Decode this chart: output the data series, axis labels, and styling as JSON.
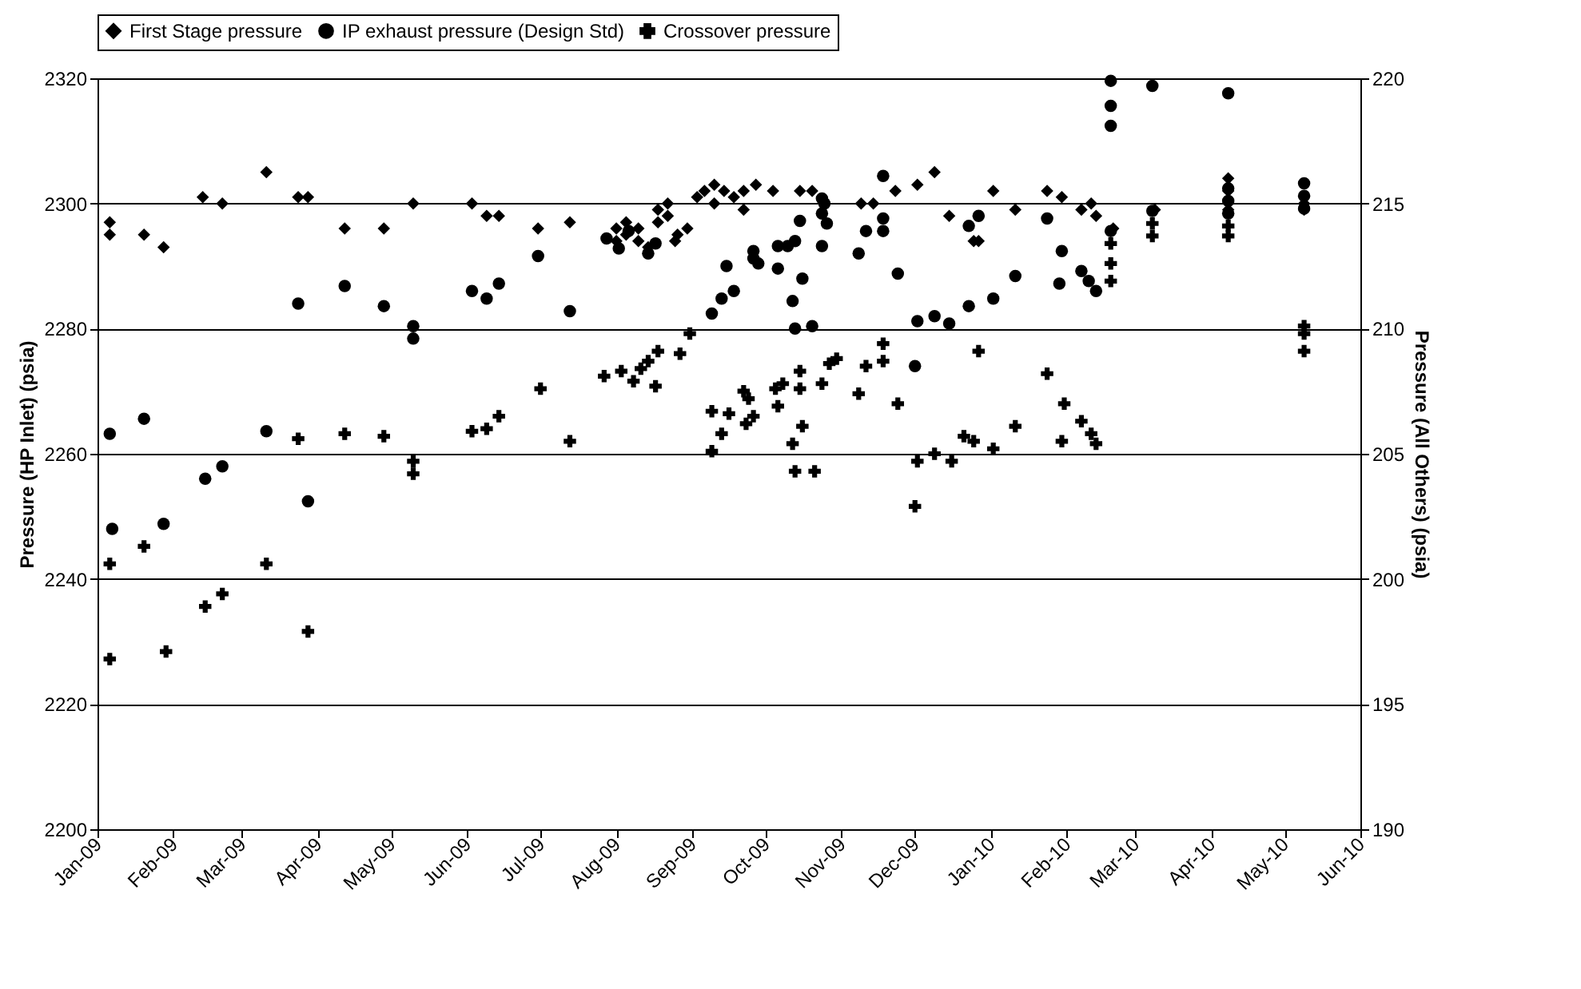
{
  "chart_data": {
    "type": "scatter",
    "ylabel": "Pressure (HP Inlet) (psia)",
    "y2label": "Pressure (All Others) (psia)",
    "xlim": [
      "2009-01-01",
      "2010-06-01"
    ],
    "xticks": [
      {
        "value": "2009-01-01",
        "label": "Jan-09"
      },
      {
        "value": "2009-02-01",
        "label": "Feb-09"
      },
      {
        "value": "2009-03-01",
        "label": "Mar-09"
      },
      {
        "value": "2009-04-01",
        "label": "Apr-09"
      },
      {
        "value": "2009-05-01",
        "label": "May-09"
      },
      {
        "value": "2009-06-01",
        "label": "Jun-09"
      },
      {
        "value": "2009-07-01",
        "label": "Jul-09"
      },
      {
        "value": "2009-08-01",
        "label": "Aug-09"
      },
      {
        "value": "2009-09-01",
        "label": "Sep-09"
      },
      {
        "value": "2009-10-01",
        "label": "Oct-09"
      },
      {
        "value": "2009-11-01",
        "label": "Nov-09"
      },
      {
        "value": "2009-12-01",
        "label": "Dec-09"
      },
      {
        "value": "2010-01-01",
        "label": "Jan-10"
      },
      {
        "value": "2010-02-01",
        "label": "Feb-10"
      },
      {
        "value": "2010-03-01",
        "label": "Mar-10"
      },
      {
        "value": "2010-04-01",
        "label": "Apr-10"
      },
      {
        "value": "2010-05-01",
        "label": "May-10"
      },
      {
        "value": "2010-06-01",
        "label": "Jun-10"
      }
    ],
    "ylim": [
      2200,
      2320
    ],
    "yticks": [
      2200,
      2220,
      2240,
      2260,
      2280,
      2300,
      2320
    ],
    "y2lim": [
      190,
      220
    ],
    "y2ticks": [
      190,
      195,
      200,
      205,
      210,
      215,
      220
    ],
    "grid": "y",
    "legend": "top",
    "series": [
      {
        "name": "First Stage pressure",
        "color": "#000000",
        "marker": "diamond",
        "x": [
          "2009-01-06",
          "2009-01-06",
          "2009-01-20",
          "2009-01-28",
          "2009-02-13",
          "2009-02-21",
          "2009-03-11",
          "2009-03-24",
          "2009-03-28",
          "2009-04-12",
          "2009-04-28",
          "2009-05-10",
          "2009-06-03",
          "2009-06-09",
          "2009-06-14",
          "2009-06-30",
          "2009-07-13",
          "2009-08-01",
          "2009-08-01",
          "2009-08-05",
          "2009-08-05",
          "2009-08-10",
          "2009-08-10",
          "2009-08-14",
          "2009-08-18",
          "2009-08-18",
          "2009-08-22",
          "2009-08-22",
          "2009-08-25",
          "2009-08-26",
          "2009-08-30",
          "2009-09-03",
          "2009-09-06",
          "2009-09-10",
          "2009-09-10",
          "2009-09-14",
          "2009-09-18",
          "2009-09-22",
          "2009-09-22",
          "2009-09-27",
          "2009-10-04",
          "2009-10-15",
          "2009-10-20",
          "2009-11-09",
          "2009-11-14",
          "2009-11-23",
          "2009-12-02",
          "2009-12-09",
          "2009-12-15",
          "2009-12-25",
          "2009-12-27",
          "2010-01-02",
          "2010-01-11",
          "2010-01-24",
          "2010-01-30",
          "2010-02-07",
          "2010-02-11",
          "2010-02-13",
          "2010-02-20",
          "2010-03-09",
          "2010-04-08",
          "2010-04-08",
          "2010-04-08",
          "2010-05-09",
          "2010-05-09"
        ],
        "values": [
          2297,
          2295,
          2295,
          2293,
          2301,
          2300,
          2305,
          2301,
          2301,
          2296,
          2296,
          2300,
          2300,
          2298,
          2298,
          2296,
          2297,
          2296,
          2294,
          2295,
          2297,
          2294,
          2296,
          2293,
          2297,
          2299,
          2300,
          2298,
          2294,
          2295,
          2296,
          2301,
          2302,
          2303,
          2300,
          2302,
          2301,
          2302,
          2299,
          2303,
          2302,
          2302,
          2302,
          2300,
          2300,
          2302,
          2303,
          2305,
          2298,
          2294,
          2294,
          2302,
          2299,
          2302,
          2301,
          2299,
          2300,
          2298,
          2296,
          2299,
          2304,
          2302,
          2299,
          2300,
          2299
        ]
      },
      {
        "name": "IP exhaust pressure (Design Std)",
        "color": "#000000",
        "marker": "circle",
        "axis": "y2",
        "x": [
          "2009-01-06",
          "2009-01-07",
          "2009-01-20",
          "2009-01-28",
          "2009-02-14",
          "2009-02-21",
          "2009-03-11",
          "2009-03-24",
          "2009-03-28",
          "2009-04-12",
          "2009-04-28",
          "2009-05-10",
          "2009-05-10",
          "2009-06-03",
          "2009-06-09",
          "2009-06-14",
          "2009-06-30",
          "2009-07-13",
          "2009-07-28",
          "2009-08-02",
          "2009-08-06",
          "2009-08-14",
          "2009-08-17",
          "2009-09-09",
          "2009-09-13",
          "2009-09-15",
          "2009-09-18",
          "2009-09-26",
          "2009-09-26",
          "2009-09-28",
          "2009-10-06",
          "2009-10-06",
          "2009-10-10",
          "2009-10-12",
          "2009-10-13",
          "2009-10-13",
          "2009-10-15",
          "2009-10-16",
          "2009-10-20",
          "2009-10-24",
          "2009-10-24",
          "2009-10-25",
          "2009-10-26",
          "2009-10-24",
          "2009-11-08",
          "2009-11-11",
          "2009-11-18",
          "2009-11-18",
          "2009-11-18",
          "2009-11-24",
          "2009-12-01",
          "2009-12-02",
          "2009-12-09",
          "2009-12-15",
          "2009-12-23",
          "2009-12-23",
          "2009-12-27",
          "2010-01-02",
          "2010-01-11",
          "2010-01-24",
          "2010-01-29",
          "2010-01-30",
          "2010-02-07",
          "2010-02-10",
          "2010-02-13",
          "2010-02-19",
          "2010-02-19",
          "2010-02-19",
          "2010-02-19",
          "2010-03-08",
          "2010-03-08",
          "2010-04-08",
          "2010-04-08",
          "2010-04-08",
          "2010-04-08",
          "2010-05-09",
          "2010-05-09",
          "2010-05-09"
        ],
        "values": [
          205.8,
          202.0,
          206.4,
          202.2,
          204.0,
          204.5,
          205.9,
          211.0,
          203.1,
          211.7,
          210.9,
          210.1,
          209.6,
          211.5,
          211.2,
          211.8,
          212.9,
          210.7,
          213.6,
          213.2,
          213.9,
          213.0,
          213.4,
          210.6,
          211.2,
          212.5,
          211.5,
          212.8,
          213.1,
          212.6,
          213.3,
          212.4,
          213.3,
          211.1,
          210.0,
          213.5,
          214.3,
          212.0,
          210.1,
          215.2,
          214.6,
          215.0,
          214.2,
          213.3,
          213.0,
          213.9,
          216.1,
          214.4,
          213.9,
          212.2,
          208.5,
          210.3,
          210.5,
          210.2,
          210.9,
          214.1,
          214.5,
          211.2,
          212.1,
          214.4,
          211.8,
          213.1,
          212.3,
          211.9,
          211.5,
          219.9,
          218.9,
          218.1,
          213.9,
          219.7,
          214.7,
          219.4,
          215.6,
          215.1,
          214.6,
          215.8,
          215.3,
          214.8
        ]
      },
      {
        "name": "Crossover pressure",
        "color": "#000000",
        "marker": "cross",
        "axis": "y2",
        "x": [
          "2009-01-06",
          "2009-01-06",
          "2009-01-20",
          "2009-01-29",
          "2009-02-14",
          "2009-02-21",
          "2009-03-11",
          "2009-03-28",
          "2009-03-24",
          "2009-04-12",
          "2009-04-28",
          "2009-05-10",
          "2009-05-10",
          "2009-06-03",
          "2009-06-09",
          "2009-06-14",
          "2009-07-01",
          "2009-07-13",
          "2009-07-27",
          "2009-08-08",
          "2009-08-14",
          "2009-08-18",
          "2009-08-27",
          "2009-08-31",
          "2009-08-17",
          "2009-08-03",
          "2009-08-11",
          "2009-09-09",
          "2009-09-09",
          "2009-09-13",
          "2009-09-16",
          "2009-09-22",
          "2009-09-24",
          "2009-09-23",
          "2009-09-26",
          "2009-10-06",
          "2009-10-05",
          "2009-10-08",
          "2009-10-15",
          "2009-10-15",
          "2009-10-16",
          "2009-10-12",
          "2009-10-13",
          "2009-10-21",
          "2009-10-24",
          "2009-10-27",
          "2009-10-30",
          "2009-11-08",
          "2009-11-11",
          "2009-11-18",
          "2009-11-18",
          "2009-11-24",
          "2009-12-27",
          "2009-12-01",
          "2009-12-02",
          "2009-12-09",
          "2009-12-16",
          "2009-12-21",
          "2009-12-25",
          "2010-01-02",
          "2010-01-11",
          "2010-01-24",
          "2010-01-30",
          "2010-01-31",
          "2010-02-07",
          "2010-02-11",
          "2010-02-13",
          "2010-02-19",
          "2010-02-19",
          "2010-02-19",
          "2010-03-08",
          "2010-03-08",
          "2010-04-08",
          "2010-04-08",
          "2010-05-09",
          "2010-05-09",
          "2010-05-09"
        ],
        "values": [
          200.6,
          196.8,
          201.3,
          197.1,
          198.9,
          199.4,
          200.6,
          197.9,
          205.6,
          205.8,
          205.7,
          204.7,
          204.2,
          205.9,
          206.0,
          206.5,
          207.6,
          205.5,
          208.1,
          207.9,
          208.7,
          209.1,
          209.0,
          209.8,
          207.7,
          208.3,
          208.4,
          206.7,
          205.1,
          205.8,
          206.6,
          207.5,
          207.2,
          206.2,
          206.5,
          206.9,
          207.6,
          207.8,
          208.3,
          207.6,
          206.1,
          205.4,
          204.3,
          204.3,
          207.8,
          208.6,
          208.8,
          207.4,
          208.5,
          209.4,
          208.7,
          207.0,
          209.1,
          202.9,
          204.7,
          205.0,
          204.7,
          205.7,
          205.5,
          205.2,
          206.1,
          208.2,
          205.5,
          207.0,
          206.3,
          205.8,
          205.4,
          213.4,
          212.6,
          211.9,
          214.2,
          213.7,
          214.1,
          213.7,
          210.1,
          209.8,
          209.1
        ]
      }
    ]
  }
}
